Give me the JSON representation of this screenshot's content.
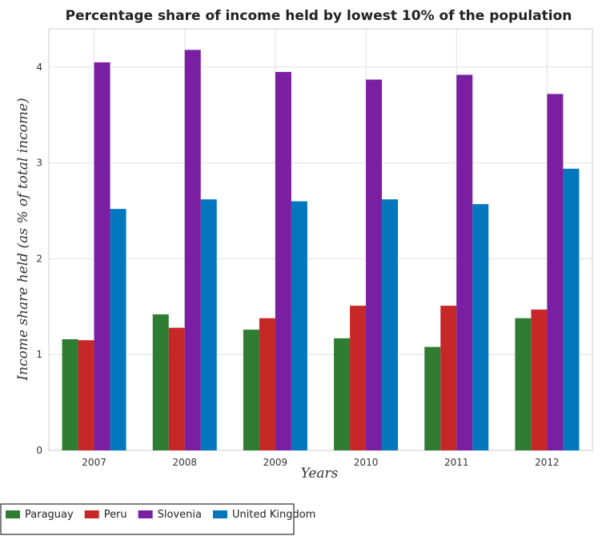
{
  "chart_data": {
    "type": "bar",
    "title": "Percentage share of income held by lowest 10% of the population",
    "xlabel": "Years",
    "ylabel": "Income share held (as % of total income)",
    "categories": [
      "2007",
      "2008",
      "2009",
      "2010",
      "2011",
      "2012"
    ],
    "ylim": [
      0,
      4.4
    ],
    "yticks": [
      0,
      1,
      2,
      3,
      4
    ],
    "ytick_labels": [
      "0",
      "1",
      "2",
      "3",
      "4"
    ],
    "grid": true,
    "legend_position": "bottom-left",
    "series": [
      {
        "name": "Paraguay",
        "color": "#2e7d32",
        "values": [
          1.16,
          1.42,
          1.26,
          1.17,
          1.08,
          1.38
        ]
      },
      {
        "name": "Peru",
        "color": "#c62828",
        "values": [
          1.15,
          1.28,
          1.38,
          1.51,
          1.51,
          1.47
        ]
      },
      {
        "name": "Slovenia",
        "color": "#7b1fa2",
        "values": [
          4.05,
          4.18,
          3.95,
          3.87,
          3.92,
          3.72
        ]
      },
      {
        "name": "United Kingdom",
        "color": "#0277bd",
        "values": [
          2.52,
          2.62,
          2.6,
          2.62,
          2.57,
          2.94
        ]
      }
    ]
  }
}
